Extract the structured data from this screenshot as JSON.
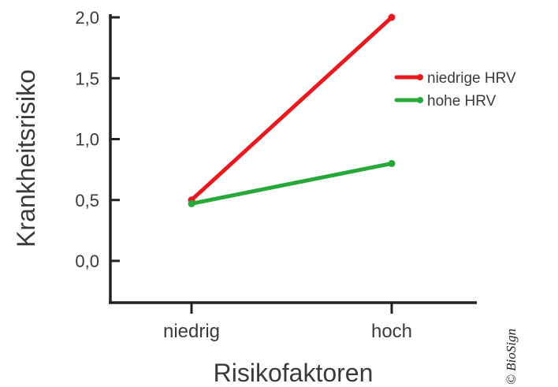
{
  "chart_data": {
    "type": "line",
    "categories": [
      "niedrig",
      "hoch"
    ],
    "series": [
      {
        "name": "niedrige HRV",
        "values": [
          0.5,
          2.0
        ],
        "color": "#e8191f"
      },
      {
        "name": "hohe HRV",
        "values": [
          0.47,
          0.8
        ],
        "color": "#26a938"
      }
    ],
    "xlabel": "Risikofaktoren",
    "ylabel": "Krankheitsrisiko",
    "yticks": [
      "2,0",
      "1,5",
      "1,0",
      "0,5",
      "0,0"
    ],
    "ytick_values": [
      2.0,
      1.5,
      1.0,
      0.5,
      0.0
    ],
    "ylim": [
      -0.35,
      2.0
    ],
    "grid": false,
    "legend_position": "right"
  },
  "copyright": "© BioSign"
}
